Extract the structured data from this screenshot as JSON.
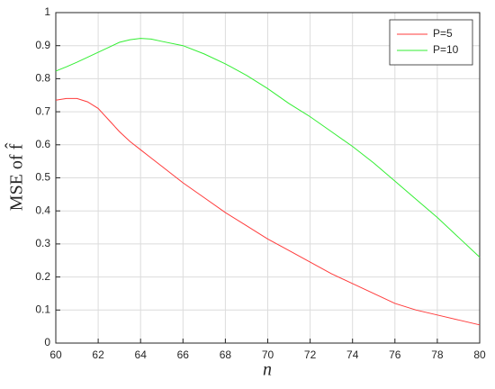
{
  "chart_data": {
    "type": "line",
    "xlabel": "n",
    "ylabel": "MSE of f̂",
    "x": [
      60,
      60.5,
      61,
      61.5,
      62,
      62.5,
      63,
      63.5,
      64,
      64.5,
      65,
      66,
      67,
      68,
      69,
      70,
      71,
      72,
      73,
      74,
      75,
      76,
      77,
      78,
      79,
      80
    ],
    "series": [
      {
        "name": "P=5",
        "color": "#ff3b3b",
        "values": [
          0.735,
          0.74,
          0.74,
          0.73,
          0.71,
          0.675,
          0.64,
          0.61,
          0.585,
          0.56,
          0.535,
          0.485,
          0.44,
          0.395,
          0.355,
          0.315,
          0.28,
          0.245,
          0.21,
          0.18,
          0.15,
          0.12,
          0.1,
          0.085,
          0.07,
          0.055
        ]
      },
      {
        "name": "P=10",
        "color": "#33ee33",
        "values": [
          0.823,
          0.836,
          0.85,
          0.865,
          0.88,
          0.895,
          0.91,
          0.918,
          0.922,
          0.92,
          0.913,
          0.9,
          0.875,
          0.845,
          0.81,
          0.77,
          0.725,
          0.685,
          0.64,
          0.595,
          0.545,
          0.49,
          0.435,
          0.38,
          0.32,
          0.26
        ]
      }
    ],
    "xlim": [
      60,
      80
    ],
    "xticks": [
      60,
      62,
      64,
      66,
      68,
      70,
      72,
      74,
      76,
      78,
      80
    ],
    "ylim": [
      0,
      1
    ],
    "yticks": [
      0,
      0.1,
      0.2,
      0.3,
      0.4,
      0.5,
      0.6,
      0.7,
      0.8,
      0.9,
      1
    ],
    "grid": true,
    "legend": "top-right"
  }
}
